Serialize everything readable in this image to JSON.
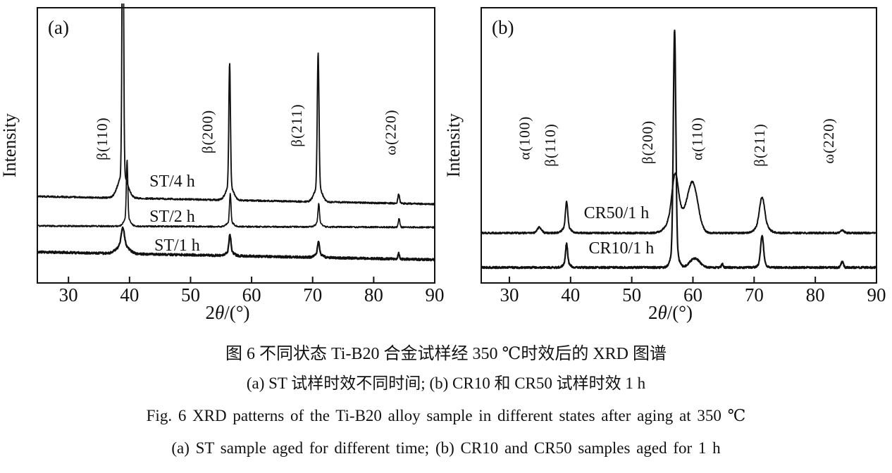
{
  "caption": {
    "zh_title": "图 6  不同状态 Ti-B20 合金试样经 350 ℃时效后的 XRD 图谱",
    "zh_sub": "(a) ST 试样时效不同时间; (b) CR10 和 CR50 试样时效 1 h",
    "en_title": "Fig. 6  XRD patterns of the Ti-B20 alloy sample in different states after aging at 350 ℃",
    "en_sub": "(a) ST sample aged for different time; (b) CR10 and CR50 samples aged for 1 h"
  },
  "chart_data": {
    "type": "line",
    "description": "Two-panel XRD patterns (intensity vs 2-theta), traces stacked with vertical offsets, peaks modeled as gaussians [center_2theta_deg, intensity_au, sigma_deg]",
    "ink_color": "#111111",
    "background": "#ffffff",
    "panels": [
      {
        "id": "a",
        "tag": "(a)",
        "xlabel": "2θ/(°)",
        "ylabel": "Intensity",
        "xlim": [
          24.9,
          90
        ],
        "xticks": [
          30,
          40,
          50,
          60,
          70,
          80,
          90
        ],
        "grid": false,
        "peak_labels": [
          {
            "text": "β(110)",
            "x2theta": 36.3,
            "y_center": 197
          },
          {
            "text": "β(200)",
            "x2theta": 53.6,
            "y_center": 187
          },
          {
            "text": "β(211)",
            "x2theta": 68.2,
            "y_center": 178
          },
          {
            "text": "ω(220)",
            "x2theta": 83.6,
            "y_center": 188
          }
        ],
        "series": [
          {
            "name": "ST/4 h",
            "label": {
              "x2theta": 47.0,
              "y_baseline": 265
            },
            "offset_y": 279,
            "slope": 11,
            "noise": 2.2,
            "stroke_w": 1.9,
            "seed": 7,
            "peaks": [
              [
                38.9,
                430,
                0.13
              ],
              [
                38.9,
                34,
                0.75
              ],
              [
                56.4,
                175,
                0.13
              ],
              [
                56.4,
                20,
                0.6
              ],
              [
                70.9,
                190,
                0.14
              ],
              [
                70.9,
                22,
                0.6
              ],
              [
                84.1,
                13,
                0.14
              ]
            ]
          },
          {
            "name": "ST/2 h",
            "label": {
              "x2theta": 47.0,
              "y_baseline": 315
            },
            "offset_y": 321,
            "slope": 2,
            "noise": 2.0,
            "stroke_w": 1.7,
            "seed": 13,
            "peaks": [
              [
                39.6,
                82,
                0.12
              ],
              [
                39.6,
                12,
                0.5
              ],
              [
                56.5,
                40,
                0.12
              ],
              [
                56.5,
                7,
                0.5
              ],
              [
                71.0,
                28,
                0.12
              ],
              [
                71.0,
                6,
                0.5
              ],
              [
                84.15,
                12,
                0.13
              ]
            ]
          },
          {
            "name": "ST/1 h",
            "label": {
              "x2theta": 47.8,
              "y_baseline": 356
            },
            "offset_y": 358,
            "slope": 11,
            "noise": 3.0,
            "stroke_w": 2.3,
            "seed": 21,
            "peaks": [
              [
                38.9,
                24,
                0.25
              ],
              [
                38.9,
                13,
                0.9
              ],
              [
                56.45,
                24,
                0.16
              ],
              [
                56.45,
                6,
                0.6
              ],
              [
                70.95,
                18,
                0.16
              ],
              [
                70.95,
                5,
                0.6
              ],
              [
                84.1,
                8,
                0.14
              ]
            ]
          }
        ]
      },
      {
        "id": "b",
        "tag": "(b)",
        "xlabel": "2θ/(°)",
        "ylabel": "Intensity",
        "xlim": [
          25.4,
          90
        ],
        "xticks": [
          30,
          40,
          50,
          60,
          70,
          80,
          90
        ],
        "grid": false,
        "peak_labels": [
          {
            "text": "α(100)",
            "x2theta": 33.3,
            "y_center": 196
          },
          {
            "text": "β(110)",
            "x2theta": 37.5,
            "y_center": 206
          },
          {
            "text": "β(200)",
            "x2theta": 53.4,
            "y_center": 202
          },
          {
            "text": "α(110)",
            "x2theta": 61.5,
            "y_center": 197
          },
          {
            "text": "β(211)",
            "x2theta": 71.7,
            "y_center": 206
          },
          {
            "text": "ω(220)",
            "x2theta": 83.0,
            "y_center": 200
          }
        ],
        "series": [
          {
            "name": "CR50/1 h",
            "label": {
              "x2theta": 47.5,
              "y_baseline": 310
            },
            "offset_y": 331,
            "slope": 0,
            "noise": 2.4,
            "stroke_w": 2.0,
            "seed": 31,
            "peaks": [
              [
                34.9,
                8,
                0.35
              ],
              [
                39.35,
                36,
                0.18
              ],
              [
                39.35,
                9,
                0.6
              ],
              [
                57.1,
                55,
                0.5
              ],
              [
                57.3,
                30,
                1.2
              ],
              [
                59.95,
                70,
                0.85
              ],
              [
                71.3,
                38,
                0.4
              ],
              [
                71.3,
                13,
                0.9
              ],
              [
                84.4,
                4,
                0.3
              ]
            ]
          },
          {
            "name": "CR10/1 h",
            "label": {
              "x2theta": 48.3,
              "y_baseline": 360
            },
            "offset_y": 380,
            "slope": 0,
            "noise": 2.6,
            "stroke_w": 2.2,
            "seed": 43,
            "peaks": [
              [
                39.35,
                27,
                0.16
              ],
              [
                39.35,
                7,
                0.5
              ],
              [
                57.0,
                310,
                0.2
              ],
              [
                57.0,
                28,
                0.55
              ],
              [
                60.3,
                13,
                0.8
              ],
              [
                64.8,
                5,
                0.15
              ],
              [
                71.3,
                38,
                0.22
              ],
              [
                71.3,
                8,
                0.5
              ],
              [
                84.4,
                8,
                0.2
              ]
            ]
          }
        ]
      }
    ]
  }
}
